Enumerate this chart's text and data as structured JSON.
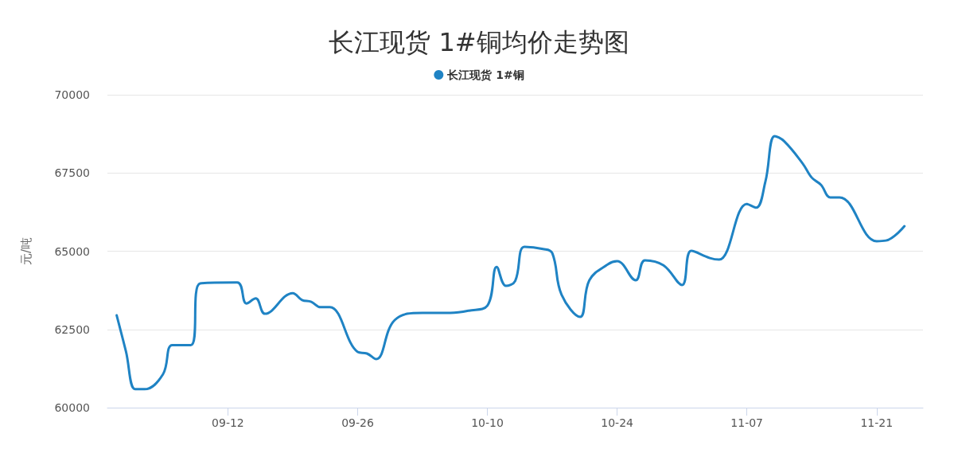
{
  "chart_data": {
    "type": "line",
    "title": "长江现货 1#铜均价走势图",
    "ylabel": "元/吨",
    "x": [
      "--08-31",
      "--09-01",
      "--09-02",
      "--09-03",
      "--09-05",
      "--09-06",
      "--09-08",
      "--09-09",
      "--09-13",
      "--09-14",
      "--09-15",
      "--09-16",
      "--09-19",
      "--09-20",
      "--09-21",
      "--09-22",
      "--09-23",
      "--09-26",
      "--09-27",
      "--09-28",
      "--09-30",
      "--10-03",
      "--10-06",
      "--10-08",
      "--10-10",
      "--10-11",
      "--10-12",
      "--10-13",
      "--10-14",
      "--10-16",
      "--10-17",
      "--10-18",
      "--10-20",
      "--10-21",
      "--10-23",
      "--10-24",
      "--10-26",
      "--10-27",
      "--10-29",
      "--10-31",
      "--11-01",
      "--11-03",
      "--11-04",
      "--11-07",
      "--11-08",
      "--11-09",
      "--11-10",
      "--11-11",
      "--11-13",
      "--11-14",
      "--11-15",
      "--11-16",
      "--11-17",
      "--11-21",
      "--11-22",
      "--11-24"
    ],
    "series": [
      {
        "name": "长江现货 1#铜",
        "color": "#1f83c4",
        "values": [
          62950,
          61800,
          60590,
          60590,
          61070,
          62000,
          62000,
          63970,
          64000,
          63330,
          63490,
          63000,
          63660,
          63440,
          63380,
          63210,
          63210,
          61780,
          61730,
          61550,
          62800,
          63030,
          63030,
          63100,
          63260,
          64500,
          63890,
          64050,
          65140,
          65070,
          64940,
          63610,
          62900,
          64070,
          64580,
          64680,
          64070,
          64710,
          64550,
          63920,
          65010,
          64780,
          64730,
          66510,
          66390,
          67230,
          68680,
          68520,
          67810,
          67350,
          67120,
          66720,
          66720,
          65320,
          65340,
          65800
        ]
      }
    ],
    "xlim": [
      "--08-30",
      "--11-26"
    ],
    "xticks": [
      {
        "value": "--09-12",
        "label": "09-12"
      },
      {
        "value": "--09-26",
        "label": "09-26"
      },
      {
        "value": "--10-10",
        "label": "10-10"
      },
      {
        "value": "--10-24",
        "label": "10-24"
      },
      {
        "value": "--11-07",
        "label": "11-07"
      },
      {
        "value": "--11-21",
        "label": "11-21"
      }
    ],
    "ylim": [
      60000,
      70000
    ],
    "yticks": [
      60000,
      62500,
      65000,
      67500,
      70000
    ],
    "grid": "y",
    "legend": "top",
    "marker": "none",
    "line_style": "solid"
  }
}
